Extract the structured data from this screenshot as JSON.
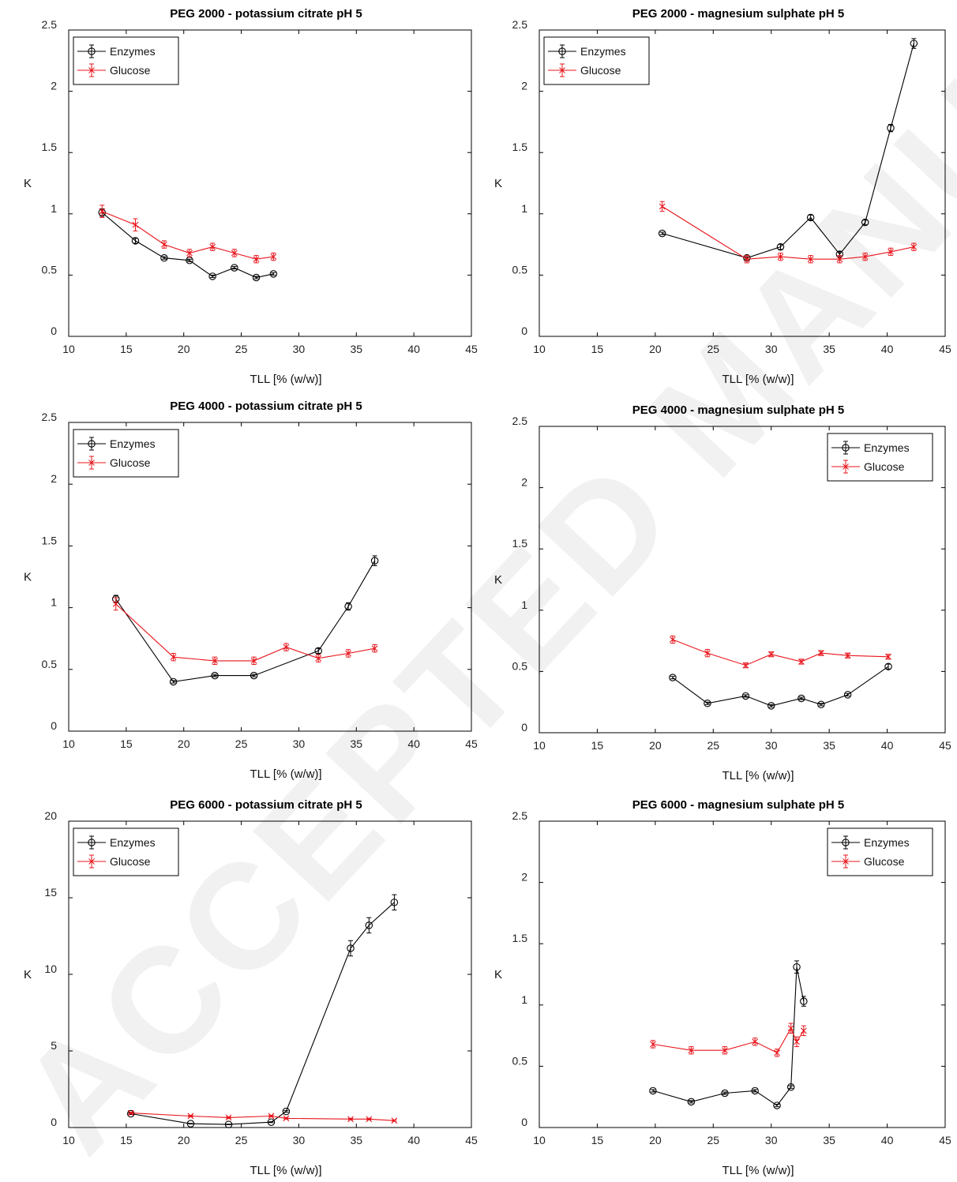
{
  "colors": {
    "enzymes": "#000000",
    "glucose": "#e8141b"
  },
  "legend_labels": [
    "Enzymes",
    "Glucose"
  ],
  "watermark_text": "ACCEPTED MANUSCRIPT",
  "chart_data": [
    {
      "type": "line",
      "title": "PEG 2000 - potassium citrate pH 5",
      "xlabel": "TLL [% (w/w)]",
      "ylabel": "K",
      "xlim": [
        10,
        45
      ],
      "ylim": [
        0,
        2.5
      ],
      "xticks": [
        "10",
        "15",
        "20",
        "25",
        "30",
        "35",
        "40",
        "45"
      ],
      "yticks": [
        "0",
        "0.5",
        "1",
        "1.5",
        "2",
        "2.5"
      ],
      "legend_position": "top-left",
      "grid": false,
      "series": [
        {
          "name": "Enzymes",
          "marker": "circle",
          "x": [
            12.9,
            15.8,
            18.3,
            20.5,
            22.5,
            24.4,
            26.3,
            27.8
          ],
          "y": [
            1.01,
            0.78,
            0.64,
            0.62,
            0.49,
            0.56,
            0.48,
            0.51
          ],
          "err": [
            0.03,
            0.02,
            0.01,
            0.01,
            0.01,
            0.01,
            0.01,
            0.01
          ]
        },
        {
          "name": "Glucose",
          "marker": "x",
          "x": [
            12.9,
            15.8,
            18.3,
            20.5,
            22.5,
            24.4,
            26.3,
            27.8
          ],
          "y": [
            1.02,
            0.91,
            0.75,
            0.68,
            0.73,
            0.68,
            0.63,
            0.65
          ],
          "err": [
            0.05,
            0.05,
            0.03,
            0.03,
            0.03,
            0.03,
            0.03,
            0.03
          ]
        }
      ]
    },
    {
      "type": "line",
      "title": "PEG 2000 - magnesium sulphate pH 5",
      "xlabel": "TLL [% (w/w)]",
      "ylabel": "K",
      "xlim": [
        10,
        45
      ],
      "ylim": [
        0,
        2.5
      ],
      "xticks": [
        "10",
        "15",
        "20",
        "25",
        "30",
        "35",
        "40",
        "45"
      ],
      "yticks": [
        "0",
        "0.5",
        "1",
        "1.5",
        "2",
        "2.5"
      ],
      "legend_position": "top-left",
      "grid": false,
      "series": [
        {
          "name": "Enzymes",
          "marker": "circle",
          "x": [
            20.6,
            27.9,
            30.8,
            33.4,
            35.9,
            38.1,
            40.3,
            42.3
          ],
          "y": [
            0.84,
            0.64,
            0.73,
            0.97,
            0.67,
            0.93,
            1.7,
            2.39
          ],
          "err": [
            0.01,
            0.01,
            0.02,
            0.02,
            0.02,
            0.02,
            0.03,
            0.04
          ]
        },
        {
          "name": "Glucose",
          "marker": "x",
          "x": [
            20.6,
            27.9,
            30.8,
            33.4,
            35.9,
            38.1,
            40.3,
            42.3
          ],
          "y": [
            1.06,
            0.63,
            0.65,
            0.63,
            0.63,
            0.65,
            0.69,
            0.73
          ],
          "err": [
            0.04,
            0.03,
            0.03,
            0.03,
            0.03,
            0.03,
            0.03,
            0.03
          ]
        }
      ]
    },
    {
      "type": "line",
      "title": "PEG 4000 - potassium citrate pH 5",
      "xlabel": "TLL [% (w/w)]",
      "ylabel": "K",
      "xlim": [
        10,
        45
      ],
      "ylim": [
        0,
        2.5
      ],
      "xticks": [
        "10",
        "15",
        "20",
        "25",
        "30",
        "35",
        "40",
        "45"
      ],
      "yticks": [
        "0",
        "0.5",
        "1",
        "1.5",
        "2",
        "2.5"
      ],
      "legend_position": "top-left",
      "grid": false,
      "series": [
        {
          "name": "Enzymes",
          "marker": "circle",
          "x": [
            14.1,
            19.1,
            22.7,
            26.1,
            31.7,
            34.3,
            36.6
          ],
          "y": [
            1.07,
            0.4,
            0.45,
            0.45,
            0.65,
            1.01,
            1.38
          ],
          "err": [
            0.03,
            0.01,
            0.01,
            0.01,
            0.02,
            0.03,
            0.04
          ]
        },
        {
          "name": "Glucose",
          "marker": "x",
          "x": [
            14.1,
            19.1,
            22.7,
            26.1,
            28.9,
            31.7,
            34.3,
            36.6
          ],
          "y": [
            1.03,
            0.6,
            0.57,
            0.57,
            0.68,
            0.59,
            0.63,
            0.67
          ],
          "err": [
            0.05,
            0.03,
            0.03,
            0.03,
            0.03,
            0.03,
            0.03,
            0.03
          ]
        }
      ]
    },
    {
      "type": "line",
      "title": "PEG 4000 - magnesium sulphate pH 5",
      "xlabel": "TLL [% (w/w)]",
      "ylabel": "K",
      "xlim": [
        10,
        45
      ],
      "ylim": [
        0,
        2.5
      ],
      "xticks": [
        "10",
        "15",
        "20",
        "25",
        "30",
        "35",
        "40",
        "45"
      ],
      "yticks": [
        "0",
        "0.5",
        "1",
        "1.5",
        "2",
        "2.5"
      ],
      "legend_position": "top-right",
      "grid": false,
      "series": [
        {
          "name": "Enzymes",
          "marker": "circle",
          "x": [
            21.5,
            24.5,
            27.8,
            30.0,
            32.6,
            34.3,
            36.6,
            40.1
          ],
          "y": [
            0.45,
            0.24,
            0.3,
            0.22,
            0.28,
            0.23,
            0.31,
            0.54
          ],
          "err": [
            0.01,
            0.01,
            0.01,
            0.01,
            0.01,
            0.01,
            0.01,
            0.02
          ]
        },
        {
          "name": "Glucose",
          "marker": "x",
          "x": [
            21.5,
            24.5,
            27.8,
            30.0,
            32.6,
            34.3,
            36.6,
            40.1
          ],
          "y": [
            0.76,
            0.65,
            0.55,
            0.64,
            0.58,
            0.65,
            0.63,
            0.62
          ],
          "err": [
            0.03,
            0.03,
            0.02,
            0.02,
            0.02,
            0.02,
            0.02,
            0.02
          ]
        }
      ]
    },
    {
      "type": "line",
      "title": "PEG 6000 - potassium citrate pH 5",
      "xlabel": "TLL [% (w/w)]",
      "ylabel": "K",
      "xlim": [
        10,
        45
      ],
      "ylim": [
        0,
        20
      ],
      "xticks": [
        "10",
        "15",
        "20",
        "25",
        "30",
        "35",
        "40",
        "45"
      ],
      "yticks": [
        "0",
        "5",
        "10",
        "15",
        "20"
      ],
      "legend_position": "top-left",
      "grid": false,
      "series": [
        {
          "name": "Enzymes",
          "marker": "circle",
          "x": [
            15.4,
            20.6,
            23.9,
            27.6,
            28.9,
            34.5,
            36.1,
            38.3
          ],
          "y": [
            0.9,
            0.25,
            0.2,
            0.35,
            1.05,
            11.7,
            13.2,
            14.7
          ],
          "err": [
            0.05,
            0.02,
            0.02,
            0.03,
            0.05,
            0.5,
            0.5,
            0.5
          ]
        },
        {
          "name": "Glucose",
          "marker": "x",
          "x": [
            15.4,
            20.6,
            23.9,
            27.6,
            28.9,
            34.5,
            36.1,
            38.3
          ],
          "y": [
            0.95,
            0.75,
            0.65,
            0.75,
            0.6,
            0.55,
            0.55,
            0.45
          ],
          "err": [
            0.05,
            0.05,
            0.05,
            0.05,
            0.05,
            0.05,
            0.05,
            0.05
          ]
        }
      ]
    },
    {
      "type": "line",
      "title": "PEG 6000 - magnesium sulphate pH 5",
      "xlabel": "TLL [% (w/w)]",
      "ylabel": "K",
      "xlim": [
        10,
        45
      ],
      "ylim": [
        0,
        2.5
      ],
      "xticks": [
        "10",
        "15",
        "20",
        "25",
        "30",
        "35",
        "40",
        "45"
      ],
      "yticks": [
        "0",
        "0.5",
        "1",
        "1.5",
        "2",
        "2.5"
      ],
      "legend_position": "top-right",
      "grid": false,
      "series": [
        {
          "name": "Enzymes",
          "marker": "circle",
          "x": [
            19.8,
            23.1,
            26.0,
            28.6,
            30.5,
            31.7,
            32.2,
            32.8
          ],
          "y": [
            0.3,
            0.21,
            0.28,
            0.3,
            0.18,
            0.33,
            1.31,
            1.03
          ],
          "err": [
            0.01,
            0.01,
            0.01,
            0.01,
            0.01,
            0.01,
            0.05,
            0.04
          ]
        },
        {
          "name": "Glucose",
          "marker": "x",
          "x": [
            19.8,
            23.1,
            26.0,
            28.6,
            30.5,
            31.7,
            32.2,
            32.8
          ],
          "y": [
            0.68,
            0.63,
            0.63,
            0.7,
            0.61,
            0.81,
            0.7,
            0.79
          ],
          "err": [
            0.03,
            0.03,
            0.03,
            0.03,
            0.03,
            0.04,
            0.04,
            0.04
          ]
        }
      ]
    }
  ]
}
